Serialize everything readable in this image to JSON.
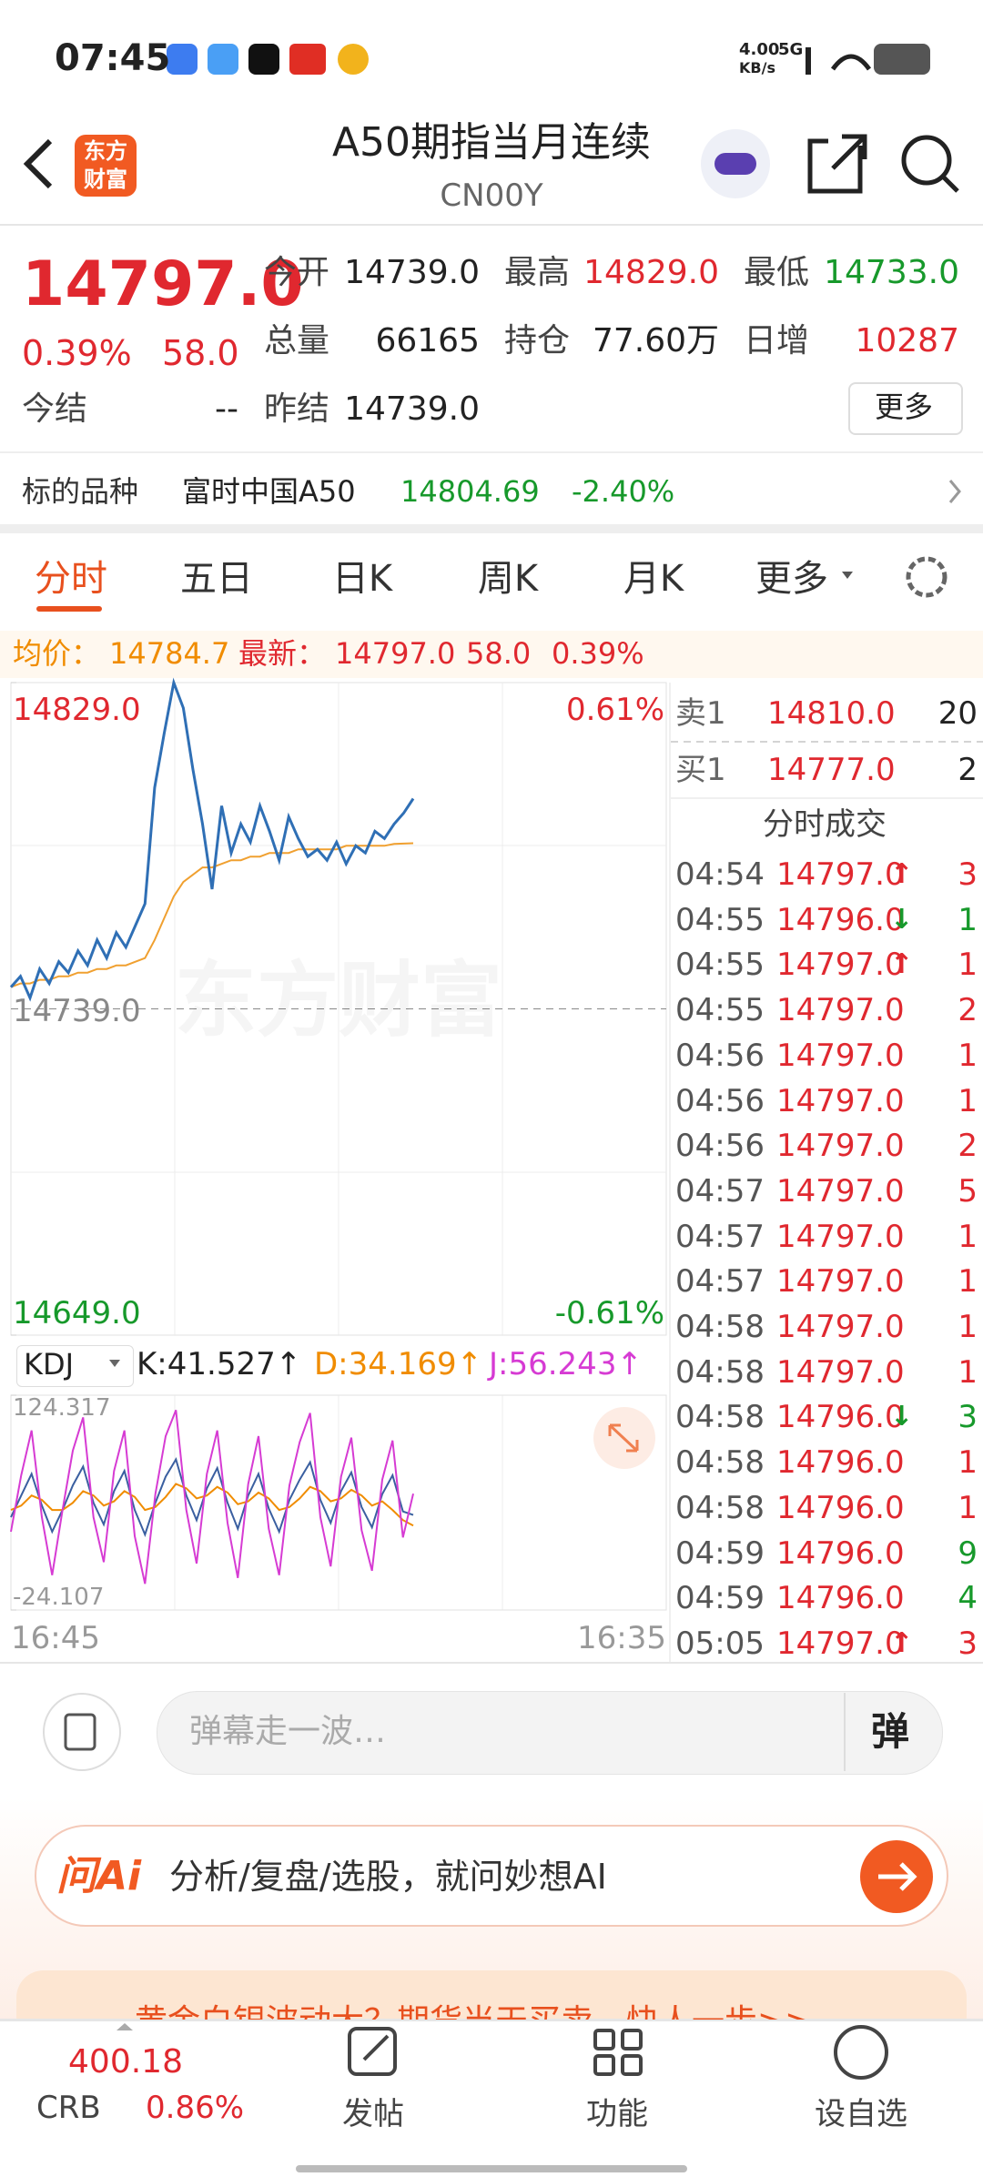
{
  "status": {
    "time": "07:45",
    "net_speed": "4.00",
    "net_unit": "KB/s",
    "network": "5G"
  },
  "header": {
    "logo": [
      "东方",
      "财富"
    ],
    "title": "A50期指当月连续",
    "code": "CN00Y"
  },
  "quote": {
    "price": "14797.0",
    "change_pct": "0.39%",
    "change": "58.0",
    "settle_label": "今结",
    "settle_value": "--",
    "more": "更多",
    "fields": [
      [
        {
          "label": "今开",
          "value": "14739.0"
        },
        {
          "label": "最高",
          "value": "14829.0",
          "color": "red"
        },
        {
          "label": "最低",
          "value": "14733.0",
          "color": "green"
        }
      ],
      [
        {
          "label": "总量",
          "value": "66165"
        },
        {
          "label": "持仓",
          "value": "77.60万"
        },
        {
          "label": "日增",
          "value": "10287",
          "color": "red"
        }
      ],
      [
        {
          "label": "昨结",
          "value": "14739.0"
        }
      ]
    ]
  },
  "underlying": {
    "label": "标的品种",
    "name": "富时中国A50",
    "price": "14804.69",
    "change": "-2.40%"
  },
  "tabs": [
    "分时",
    "五日",
    "日K",
    "周K",
    "月K",
    "更多"
  ],
  "avg_bar": {
    "avg_label": "均价：",
    "avg": "14784.7",
    "last_label": "最新：",
    "last": "14797.0",
    "change": "58.0",
    "change_pct": "0.39%"
  },
  "price_chart": {
    "type": "line",
    "watermark": "东方财富",
    "yticks": [
      {
        "value": 14829,
        "label": "14829.0"
      },
      {
        "value": 14739,
        "label": "14739.0"
      },
      {
        "value": 14649,
        "label": "14649.0"
      }
    ],
    "pct_top": "0.61%",
    "pct_bottom": "-0.61%",
    "x_start": "16:45",
    "x_end": "16:35",
    "price": {
      "color": "#2f6fb5",
      "values": [
        14745,
        14748,
        14742,
        14750,
        14746,
        14752,
        14749,
        14755,
        14751,
        14758,
        14753,
        14760,
        14756,
        14762,
        14768,
        14800,
        14815,
        14829,
        14822,
        14805,
        14790,
        14772,
        14795,
        14782,
        14790,
        14785,
        14795,
        14788,
        14780,
        14792,
        14786,
        14781,
        14783,
        14780,
        14785,
        14779,
        14784,
        14782,
        14788,
        14786,
        14790,
        14793,
        14797
      ]
    },
    "avg": {
      "color": "#f0a030",
      "values": [
        14745,
        14746,
        14746,
        14747,
        14747,
        14748,
        14748,
        14749,
        14749,
        14750,
        14750,
        14751,
        14751,
        14752,
        14753,
        14758,
        14764,
        14770,
        14774,
        14776,
        14778,
        14778,
        14779,
        14780,
        14780,
        14781,
        14781,
        14782,
        14782,
        14782,
        14783,
        14783,
        14783,
        14783,
        14783,
        14784,
        14784,
        14784,
        14784,
        14784,
        14784.5,
        14784.6,
        14784.7
      ]
    }
  },
  "kdj": {
    "type": "line",
    "indicator": "KDJ",
    "k_label": "K:41.527↑",
    "d_label": "D:34.169↑",
    "j_label": "J:56.243↑",
    "yticks": [
      124.317,
      -24.107
    ],
    "series": [
      {
        "color": "#3a5fa0",
        "values": [
          40,
          55,
          70,
          48,
          30,
          45,
          62,
          75,
          50,
          35,
          58,
          72,
          45,
          28,
          50,
          68,
          80,
          55,
          38,
          60,
          74,
          50,
          32,
          55,
          70,
          46,
          30,
          52,
          66,
          78,
          52,
          36,
          58,
          71,
          47,
          33,
          56,
          69,
          44,
          41.527
        ]
      },
      {
        "color": "#f08c00",
        "values": [
          45,
          48,
          55,
          52,
          45,
          45,
          50,
          58,
          55,
          48,
          51,
          58,
          54,
          45,
          47,
          54,
          63,
          60,
          53,
          55,
          61,
          57,
          49,
          51,
          57,
          53,
          45,
          47,
          53,
          61,
          58,
          51,
          53,
          59,
          55,
          48,
          51,
          45,
          38,
          34.169
        ]
      },
      {
        "color": "#d63bd3",
        "values": [
          30,
          69,
          100,
          40,
          0,
          45,
          86,
          109,
          40,
          9,
          72,
          100,
          27,
          -6,
          56,
          96,
          114,
          45,
          8,
          70,
          100,
          36,
          -2,
          63,
          96,
          32,
          0,
          62,
          92,
          112,
          40,
          6,
          68,
          95,
          31,
          3,
          66,
          93,
          26,
          56.243
        ]
      }
    ]
  },
  "order_book": [
    {
      "side": "卖1",
      "price": "14810.0",
      "volume": "20"
    },
    {
      "side": "买1",
      "price": "14777.0",
      "volume": "2"
    }
  ],
  "trades": {
    "title": "分时成交",
    "rows": [
      {
        "time": "04:54",
        "price": "14797.0",
        "arrow": "↑",
        "dir": "up",
        "volume": "3"
      },
      {
        "time": "04:55",
        "price": "14796.0",
        "arrow": "↓",
        "dir": "down",
        "volume": "1",
        "volume_color": "green"
      },
      {
        "time": "04:55",
        "price": "14797.0",
        "arrow": "↑",
        "dir": "up",
        "volume": "1"
      },
      {
        "time": "04:55",
        "price": "14797.0",
        "volume": "2"
      },
      {
        "time": "04:56",
        "price": "14797.0",
        "volume": "1"
      },
      {
        "time": "04:56",
        "price": "14797.0",
        "volume": "1"
      },
      {
        "time": "04:56",
        "price": "14797.0",
        "volume": "2"
      },
      {
        "time": "04:57",
        "price": "14797.0",
        "volume": "5"
      },
      {
        "time": "04:57",
        "price": "14797.0",
        "volume": "1"
      },
      {
        "time": "04:57",
        "price": "14797.0",
        "volume": "1"
      },
      {
        "time": "04:58",
        "price": "14797.0",
        "volume": "1"
      },
      {
        "time": "04:58",
        "price": "14797.0",
        "volume": "1"
      },
      {
        "time": "04:58",
        "price": "14796.0",
        "arrow": "↓",
        "dir": "down",
        "volume": "3",
        "volume_color": "green"
      },
      {
        "time": "04:58",
        "price": "14796.0",
        "volume": "1"
      },
      {
        "time": "04:58",
        "price": "14796.0",
        "volume": "1"
      },
      {
        "time": "04:59",
        "price": "14796.0",
        "volume": "9",
        "volume_color": "green"
      },
      {
        "time": "04:59",
        "price": "14796.0",
        "volume": "4",
        "volume_color": "green"
      },
      {
        "time": "05:05",
        "price": "14797.0",
        "arrow": "↑",
        "dir": "up",
        "volume": "3"
      }
    ]
  },
  "comment": {
    "placeholder": "弹幕走一波…",
    "button": "弹"
  },
  "ai": {
    "brand": "问Ai",
    "text": "分析/复盘/选股，就问妙想AI"
  },
  "banner": {
    "text": "黄金白银波动大？期货当天买卖，快人一步>>"
  },
  "nav": {
    "index_value": "400.18",
    "index_name": "CRB",
    "index_change": "0.86%",
    "items": [
      "发帖",
      "功能",
      "设自选"
    ]
  }
}
